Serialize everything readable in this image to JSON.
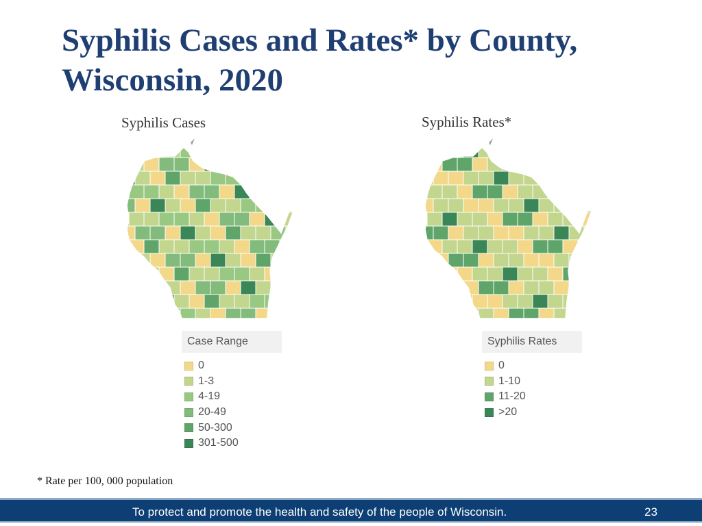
{
  "slide": {
    "title": "Syphilis Cases and Rates* by County, Wisconsin, 2020",
    "footnote": "* Rate per 100, 000 population",
    "footer_text": "To protect and promote the health and safety of the people of Wisconsin.",
    "page_number": "23"
  },
  "maps": [
    {
      "caption": "Syphilis Cases",
      "legend_title": "Case Range",
      "legend": [
        {
          "label": "0",
          "color": "#f3d88a"
        },
        {
          "label": "1-3",
          "color": "#c2d68e"
        },
        {
          "label": "4-19",
          "color": "#99c883"
        },
        {
          "label": "20-49",
          "color": "#82bb7b"
        },
        {
          "label": "50-300",
          "color": "#5fa56a"
        },
        {
          "label": "301-500",
          "color": "#3b8656"
        }
      ]
    },
    {
      "caption": "Syphilis Rates*",
      "legend_title": "Syphilis Rates",
      "legend": [
        {
          "label": "0",
          "color": "#f3d88a"
        },
        {
          "label": "1-10",
          "color": "#c2d68e"
        },
        {
          "label": "11-20",
          "color": "#5fa56a"
        },
        {
          "label": ">20",
          "color": "#3b8656"
        }
      ]
    }
  ]
}
